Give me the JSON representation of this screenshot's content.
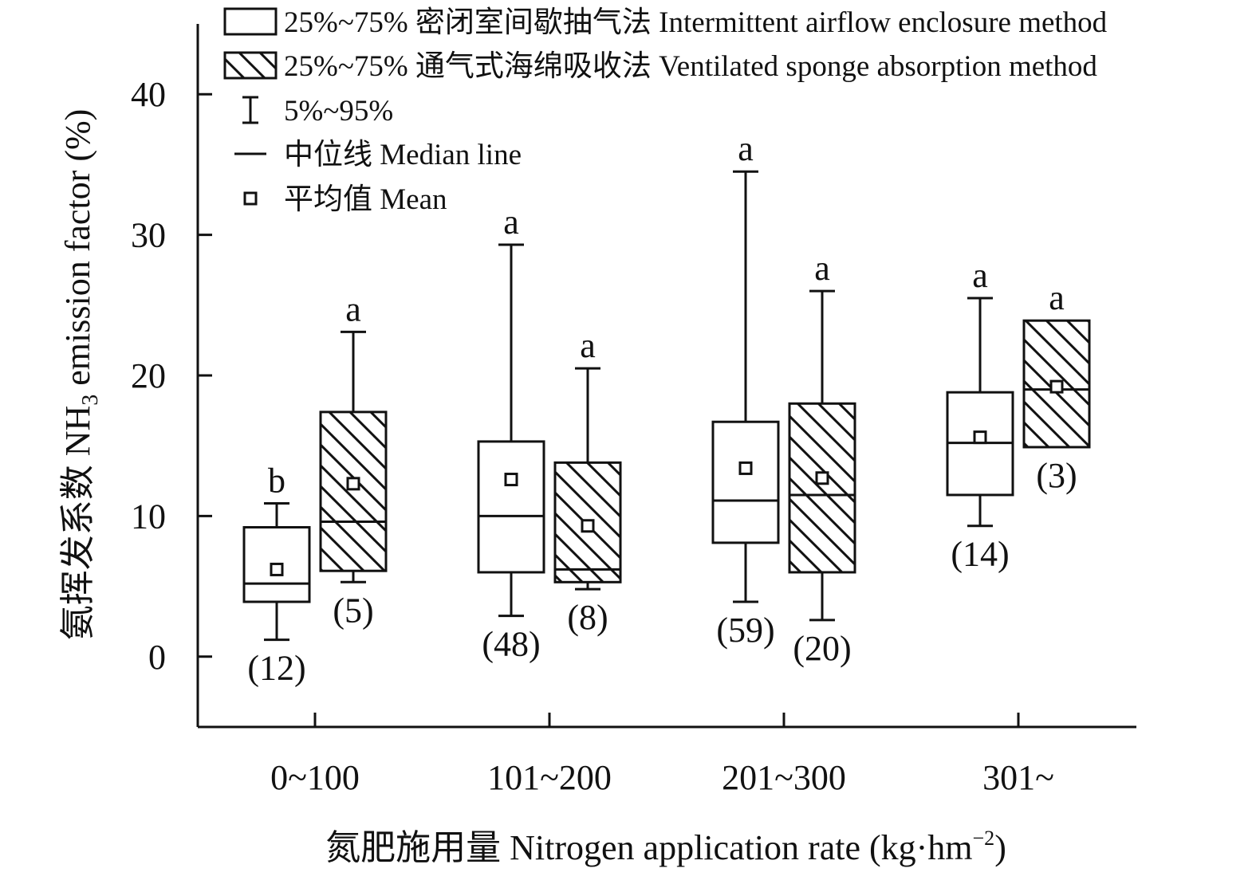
{
  "chart_data": {
    "type": "box",
    "title": "",
    "ylabel_cn": "氨挥发系数 NH",
    "ylabel_sub": "3",
    "ylabel_en": " emission factor (%)",
    "xlabel_cn": "氮肥施用量 Nitrogen application rate (kg·hm",
    "xlabel_sup": "−2",
    "xlabel_end": ")",
    "ylim": [
      -5,
      45
    ],
    "yticks": [
      0,
      10,
      20,
      30,
      40
    ],
    "categories": [
      "0~100",
      "101~200",
      "201~300",
      "301~"
    ],
    "legend": {
      "placement": "top-left",
      "items": [
        {
          "key": "intermittent",
          "label": "25%~75% 密闭室间歇抽气法 Intermittent airflow enclosure method"
        },
        {
          "key": "ventilated",
          "label": "25%~75%  通气式海绵吸收法 Ventilated sponge absorption method"
        },
        {
          "key": "whisker",
          "label": "5%~95%"
        },
        {
          "key": "median",
          "label": "中位线 Median line"
        },
        {
          "key": "mean",
          "label": "平均值 Mean"
        }
      ]
    },
    "series": [
      {
        "key": "intermittent",
        "hatch": false,
        "boxes": [
          {
            "category": "0~100",
            "p5": 1.2,
            "q1": 3.9,
            "median": 5.2,
            "q3": 9.2,
            "p95": 10.9,
            "mean": 6.2,
            "letter": "b",
            "n": "(12)"
          },
          {
            "category": "101~200",
            "p5": 2.9,
            "q1": 6.0,
            "median": 10.0,
            "q3": 15.3,
            "p95": 29.3,
            "mean": 12.6,
            "letter": "a",
            "n": "(48)"
          },
          {
            "category": "201~300",
            "p5": 3.9,
            "q1": 8.1,
            "median": 11.1,
            "q3": 16.7,
            "p95": 34.5,
            "mean": 13.4,
            "letter": "a",
            "n": "(59)"
          },
          {
            "category": "301~",
            "p5": 9.3,
            "q1": 11.5,
            "median": 15.2,
            "q3": 18.8,
            "p95": 25.5,
            "mean": 15.6,
            "letter": "a",
            "n": "(14)"
          }
        ]
      },
      {
        "key": "ventilated",
        "hatch": true,
        "boxes": [
          {
            "category": "0~100",
            "p5": 5.3,
            "q1": 6.1,
            "median": 9.6,
            "q3": 17.4,
            "p95": 23.1,
            "mean": 12.3,
            "letter": "a",
            "n": "(5)"
          },
          {
            "category": "101~200",
            "p5": 4.8,
            "q1": 5.3,
            "median": 6.2,
            "q3": 13.8,
            "p95": 20.5,
            "mean": 9.3,
            "letter": "a",
            "n": "(8)"
          },
          {
            "category": "201~300",
            "p5": 2.6,
            "q1": 6.0,
            "median": 11.5,
            "q3": 18.0,
            "p95": 26.0,
            "mean": 12.7,
            "letter": "a",
            "n": "(20)"
          },
          {
            "category": "301~",
            "p5": null,
            "q1": 14.9,
            "median": 19.0,
            "q3": 23.9,
            "p95": null,
            "mean": 19.2,
            "letter": "a",
            "n": "(3)"
          }
        ]
      }
    ]
  }
}
